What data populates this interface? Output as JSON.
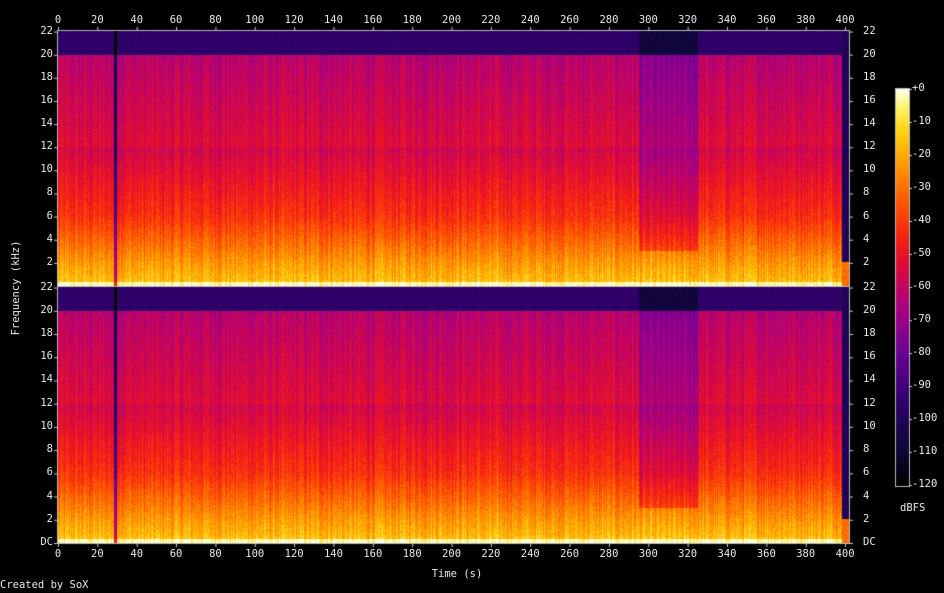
{
  "chart_data": {
    "type": "heatmap",
    "title": "",
    "xlabel": "Time (s)",
    "ylabel": "Frequency (kHz)",
    "xlim": [
      0,
      402
    ],
    "ylim": [
      0,
      22.05
    ],
    "x_ticks": [
      0,
      20,
      40,
      60,
      80,
      100,
      120,
      140,
      160,
      180,
      200,
      220,
      240,
      260,
      280,
      300,
      320,
      340,
      360,
      380,
      400
    ],
    "y_ticks": [
      "DC",
      "2",
      "4",
      "6",
      "8",
      "10",
      "12",
      "14",
      "16",
      "18",
      "20",
      "22"
    ],
    "channels": [
      {
        "name": "",
        "description_levels_dbfs": {
          "below_2kHz": -15,
          "2_to_6kHz": -30,
          "6_to_12kHz": -45,
          "12_to_20kHz": -55,
          "above_20kHz": -95
        }
      },
      {
        "name": "",
        "description_levels_dbfs": {
          "below_2kHz": -15,
          "2_to_6kHz": -30,
          "6_to_12kHz": -45,
          "12_to_20kHz": -55,
          "above_20kHz": -95
        }
      }
    ],
    "features": {
      "quiet_gap_time_s": 29,
      "lowpass_cutoff_khz": 20,
      "darker_region_time_s": [
        295,
        325
      ],
      "end_of_audio_time_s": 398
    },
    "colorbar": {
      "unit": "dBFS",
      "ticks": [
        "+0",
        "-10",
        "-20",
        "-30",
        "-40",
        "-50",
        "-60",
        "-70",
        "-80",
        "-90",
        "-100",
        "-110",
        "-120"
      ],
      "range": [
        -120,
        0
      ]
    },
    "grid": false,
    "legend": "none"
  },
  "footer": {
    "credit": "Created by SoX"
  }
}
